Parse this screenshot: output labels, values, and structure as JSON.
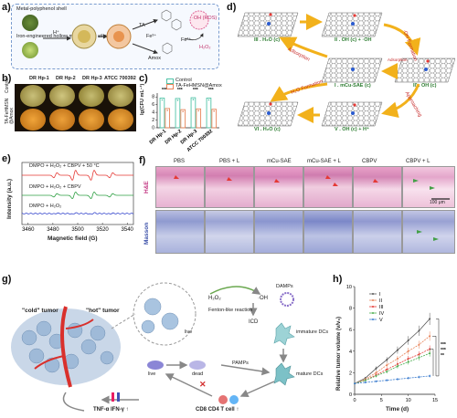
{
  "panel_a": {
    "label": "a)",
    "shell_label": "Metal-polyphenol shell",
    "core_label": "Iron-engineered hollow mesoporous silica (core)",
    "h_plus": "H⁺",
    "ta": "TA",
    "fe3": "Fe³⁺",
    "fe2": "Fe²⁺",
    "amox": "Amox",
    "oh_ros": "·OH (ROS)",
    "h2o2": "H₂O₂"
  },
  "panel_b": {
    "label": "b)",
    "cols": [
      "DR Hp-1",
      "DR Hp-2",
      "DR Hp-3",
      "ATCC 700392"
    ],
    "rows": [
      "Control",
      "TA-FeHMSN @Amox"
    ]
  },
  "panel_c": {
    "label": "c)",
    "legend": [
      "Control",
      "TA-FeHMSN@Amox"
    ],
    "ylabel": "lg(CFU mL⁻¹)",
    "sig": [
      "***",
      "***",
      "***",
      "***"
    ]
  },
  "chart_data": [
    {
      "type": "bar",
      "categories": [
        "DR Hp-1",
        "DR Hp-2",
        "DR Hp-3",
        "ATCC 700392"
      ],
      "series": [
        {
          "name": "Control",
          "values": [
            7.7,
            7.6,
            7.8,
            7.7
          ]
        },
        {
          "name": "TA-FeHMSN@Amox",
          "values": [
            5.0,
            4.7,
            4.9,
            4.8
          ]
        }
      ],
      "ylabel": "lg(CFU mL⁻¹)",
      "yticks": [
        0,
        2,
        4,
        6,
        8
      ],
      "ylim": [
        0,
        9
      ],
      "colors": [
        "#4fc3a7",
        "#e8845a"
      ]
    },
    {
      "type": "line",
      "xlabel": "Magnetic field (G)",
      "ylabel": "Intensity (a.u.)",
      "xticks": [
        3460,
        3480,
        3500,
        3520,
        3540
      ],
      "xlim": [
        3455,
        3545
      ],
      "series": [
        {
          "name": "DMPO + H₂O₂ + CBPV + 50 °C",
          "color": "#e53935"
        },
        {
          "name": "DMPO + H₂O₂ + CBPV",
          "color": "#2ea043"
        },
        {
          "name": "DMPO + H₂O₂",
          "color": "#3344cc"
        }
      ]
    },
    {
      "type": "line",
      "xlabel": "Time (d)",
      "ylabel": "Relative tumor volume (v/v₀)",
      "x": [
        0,
        2,
        4,
        6,
        8,
        10,
        12,
        14
      ],
      "xticks": [
        0,
        5,
        10,
        15
      ],
      "yticks": [
        0,
        2,
        4,
        6,
        8,
        10
      ],
      "ylim": [
        0,
        10
      ],
      "series": [
        {
          "name": "I",
          "values": [
            1.0,
            1.5,
            2.4,
            3.2,
            4.1,
            5.0,
            5.9,
            7.0
          ],
          "color": "#555555"
        },
        {
          "name": "II",
          "values": [
            1.0,
            1.4,
            2.0,
            2.7,
            3.3,
            4.0,
            4.6,
            5.4
          ],
          "color": "#e8845a"
        },
        {
          "name": "III",
          "values": [
            1.0,
            1.3,
            1.8,
            2.3,
            2.8,
            3.3,
            3.7,
            4.2
          ],
          "color": "#e53935"
        },
        {
          "name": "IV",
          "values": [
            1.0,
            1.3,
            1.7,
            2.1,
            2.6,
            3.0,
            3.4,
            3.8
          ],
          "color": "#4caf50"
        },
        {
          "name": "V",
          "values": [
            1.0,
            1.1,
            1.2,
            1.3,
            1.4,
            1.5,
            1.6,
            1.7
          ],
          "color": "#3f7fd0"
        }
      ],
      "sig": [
        "***",
        "***",
        "**"
      ]
    }
  ],
  "panel_d": {
    "label": "d)",
    "states": [
      "III . H₂O (c)",
      "II . OH (c) + ·OH",
      "I . mCu-SAE (c)",
      "II' . OH (c)",
      "VI . H₂O (c)",
      "V . OH (c) + H⁺"
    ],
    "arrows": [
      "·OH Formation",
      "Adsorption",
      "H₂O Formation",
      "Approaching",
      "Adsorption"
    ]
  },
  "panel_e": {
    "label": "e)",
    "traces": [
      "DMPO + H₂O₂ + CBPV + 50 °C",
      "DMPO + H₂O₂ + CBPV",
      "DMPO + H₂O₂"
    ],
    "xlabel": "Magnetic field (G)",
    "ylabel": "Intensity (a.u.)"
  },
  "panel_f": {
    "label": "f)",
    "cols": [
      "PBS",
      "PBS + L",
      "mCu-SAE",
      "mCu-SAE + L",
      "CBPV",
      "CBPV + L"
    ],
    "rows": [
      "H&E",
      "Masson"
    ],
    "scale": "100 μm"
  },
  "panel_g": {
    "label": "g)",
    "cold": "\"cold\" tumor",
    "hot": "\"hot\" tumor",
    "h2o2": "H₂O₂",
    "oh": "·OH",
    "fenton": "Fenton-like reaction",
    "live1": "live",
    "live2": "live",
    "dead": "dead",
    "icd": "ICD",
    "damps": "DAMPs",
    "pamps": "PAMPs",
    "immature": "immature DCs",
    "mature": "mature DCs",
    "tcell": "CD8 CD4 T cell ↑",
    "tnf": "TNF-α IFN-γ ↑"
  },
  "panel_h": {
    "label": "h)",
    "xlabel": "Time (d)",
    "ylabel": "Relative tumor volume (v/v₀)"
  }
}
